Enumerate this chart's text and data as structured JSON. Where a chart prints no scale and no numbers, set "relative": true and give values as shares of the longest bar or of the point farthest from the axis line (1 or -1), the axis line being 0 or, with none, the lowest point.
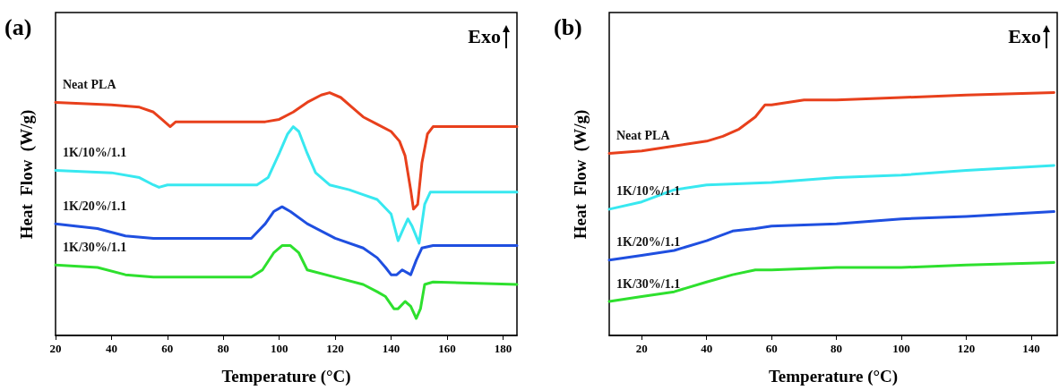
{
  "chart_data": [
    {
      "type": "line",
      "title": "(a)",
      "xlabel": "Temperature (°C)",
      "ylabel": "Heat  Flow  (W/g)",
      "annotations": [
        "Exo"
      ],
      "relative": true,
      "marker": "none",
      "xlim": [
        20,
        185
      ],
      "xticks": [
        20,
        40,
        60,
        80,
        100,
        120,
        140,
        160,
        180
      ],
      "series": [
        {
          "name": "Neat PLA",
          "color": "#e8401c",
          "x": [
            20,
            40,
            50,
            55,
            58,
            61,
            63,
            65,
            80,
            95,
            100,
            105,
            110,
            115,
            118,
            122,
            126,
            130,
            135,
            140,
            143,
            145,
            147,
            148,
            149.5,
            151,
            153,
            155,
            160,
            185
          ],
          "values": [
            0.96,
            0.95,
            0.94,
            0.92,
            0.89,
            0.86,
            0.88,
            0.88,
            0.88,
            0.88,
            0.89,
            0.92,
            0.96,
            0.99,
            1,
            0.98,
            0.94,
            0.9,
            0.87,
            0.84,
            0.8,
            0.74,
            0.6,
            0.52,
            0.54,
            0.71,
            0.83,
            0.86,
            0.86,
            0.86
          ]
        },
        {
          "name": "1K/10%/1.1",
          "color": "#38e8f0",
          "x": [
            20,
            40,
            50,
            55,
            57,
            60,
            80,
            92,
            96,
            100,
            103,
            105,
            107,
            110,
            113,
            118,
            125,
            130,
            135,
            140,
            142.5,
            144,
            146,
            147.5,
            150,
            152,
            154,
            160,
            185
          ],
          "values": [
            0.68,
            0.67,
            0.65,
            0.62,
            0.61,
            0.62,
            0.62,
            0.62,
            0.65,
            0.75,
            0.83,
            0.86,
            0.84,
            0.75,
            0.67,
            0.62,
            0.6,
            0.58,
            0.56,
            0.5,
            0.39,
            0.43,
            0.48,
            0.45,
            0.38,
            0.54,
            0.59,
            0.59,
            0.59
          ]
        },
        {
          "name": "1K/20%/1.1",
          "color": "#1f4fe0",
          "x": [
            20,
            35,
            45,
            55,
            80,
            90,
            95,
            98,
            101,
            104,
            110,
            120,
            130,
            135,
            138,
            140,
            142,
            144,
            147,
            149,
            151,
            155,
            185
          ],
          "values": [
            0.46,
            0.44,
            0.41,
            0.4,
            0.4,
            0.4,
            0.46,
            0.51,
            0.53,
            0.51,
            0.46,
            0.4,
            0.36,
            0.32,
            0.28,
            0.25,
            0.25,
            0.27,
            0.25,
            0.31,
            0.36,
            0.37,
            0.37
          ]
        },
        {
          "name": "1K/30%/1.1",
          "color": "#2ee02e",
          "x": [
            20,
            35,
            45,
            55,
            90,
            94,
            98,
            101,
            104,
            107,
            110,
            120,
            130,
            135,
            138,
            141,
            142.5,
            145,
            147,
            149,
            150.5,
            152,
            155,
            185
          ],
          "values": [
            0.29,
            0.28,
            0.25,
            0.24,
            0.24,
            0.27,
            0.34,
            0.37,
            0.37,
            0.34,
            0.27,
            0.24,
            0.21,
            0.18,
            0.16,
            0.11,
            0.11,
            0.14,
            0.12,
            0.07,
            0.11,
            0.21,
            0.22,
            0.21
          ]
        }
      ]
    },
    {
      "type": "line",
      "title": "(b)",
      "xlabel": "Temperature (°C)",
      "ylabel": "Heat  Flow  (W/g)",
      "annotations": [
        "Exo"
      ],
      "relative": true,
      "marker": "none",
      "xlim": [
        10,
        148
      ],
      "xticks": [
        20,
        40,
        60,
        80,
        100,
        120,
        140
      ],
      "series": [
        {
          "name": "Neat PLA",
          "color": "#e8401c",
          "x": [
            10,
            20,
            30,
            40,
            45,
            50,
            55,
            58,
            60,
            70,
            80,
            100,
            120,
            147
          ],
          "values": [
            0.75,
            0.76,
            0.78,
            0.8,
            0.82,
            0.85,
            0.9,
            0.95,
            0.95,
            0.97,
            0.97,
            0.98,
            0.99,
            1
          ]
        },
        {
          "name": "1K/10%/1.1",
          "color": "#38e8f0",
          "x": [
            10,
            20,
            30,
            40,
            60,
            80,
            100,
            120,
            147
          ],
          "values": [
            0.52,
            0.55,
            0.6,
            0.62,
            0.63,
            0.65,
            0.66,
            0.68,
            0.7
          ]
        },
        {
          "name": "1K/20%/1.1",
          "color": "#1f4fe0",
          "x": [
            10,
            20,
            30,
            40,
            48,
            55,
            60,
            80,
            100,
            120,
            147
          ],
          "values": [
            0.31,
            0.33,
            0.35,
            0.39,
            0.43,
            0.44,
            0.45,
            0.46,
            0.48,
            0.49,
            0.51
          ]
        },
        {
          "name": "1K/30%/1.1",
          "color": "#2ee02e",
          "x": [
            10,
            20,
            30,
            40,
            48,
            55,
            60,
            80,
            100,
            120,
            147
          ],
          "values": [
            0.14,
            0.16,
            0.18,
            0.22,
            0.25,
            0.27,
            0.27,
            0.28,
            0.28,
            0.29,
            0.3
          ]
        }
      ]
    }
  ]
}
